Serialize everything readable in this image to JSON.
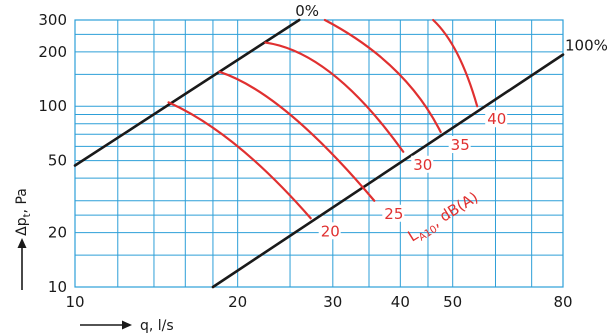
{
  "chart_data": {
    "type": "line",
    "x_axis": {
      "label": "q, l/s",
      "scale": "log",
      "range": [
        10,
        80
      ],
      "ticks": [
        10,
        20,
        30,
        40,
        50,
        80
      ],
      "tick_labels": [
        "10",
        "20",
        "30",
        "40",
        "50",
        "80"
      ]
    },
    "y_axis": {
      "label_main": "Δp",
      "label_sub": "t",
      "label_unit": ", Pa",
      "scale": "log",
      "range": [
        10,
        300
      ],
      "ticks": [
        10,
        20,
        50,
        100,
        200,
        300
      ],
      "tick_labels": [
        "10",
        "20",
        "50",
        "100",
        "200",
        "300"
      ],
      "grid_values": [
        10,
        20,
        30,
        40,
        50,
        60,
        70,
        80,
        90,
        100,
        200,
        300
      ]
    },
    "grid": true,
    "limit_lines": [
      {
        "label": "0%",
        "points": [
          [
            10,
            47
          ],
          [
            26,
            300
          ]
        ]
      },
      {
        "label": "100%",
        "points": [
          [
            18,
            10
          ],
          [
            80,
            193
          ]
        ]
      }
    ],
    "noise_series_label": {
      "main": "L",
      "sub": "A10",
      "rest": ", dB(A)"
    },
    "series": [
      {
        "name": "20",
        "points": [
          [
            14.9,
            105
          ],
          [
            20,
            60
          ],
          [
            27.3,
            24
          ]
        ]
      },
      {
        "name": "25",
        "points": [
          [
            18.5,
            155
          ],
          [
            25,
            90
          ],
          [
            35.8,
            30
          ]
        ]
      },
      {
        "name": "30",
        "points": [
          [
            22.5,
            225
          ],
          [
            30,
            150
          ],
          [
            40.5,
            56
          ]
        ]
      },
      {
        "name": "35",
        "points": [
          [
            29,
            300
          ],
          [
            39,
            160
          ],
          [
            47.5,
            72
          ]
        ]
      },
      {
        "name": "40",
        "points": [
          [
            46,
            300
          ],
          [
            51,
            195
          ],
          [
            55.5,
            100
          ]
        ]
      }
    ]
  }
}
